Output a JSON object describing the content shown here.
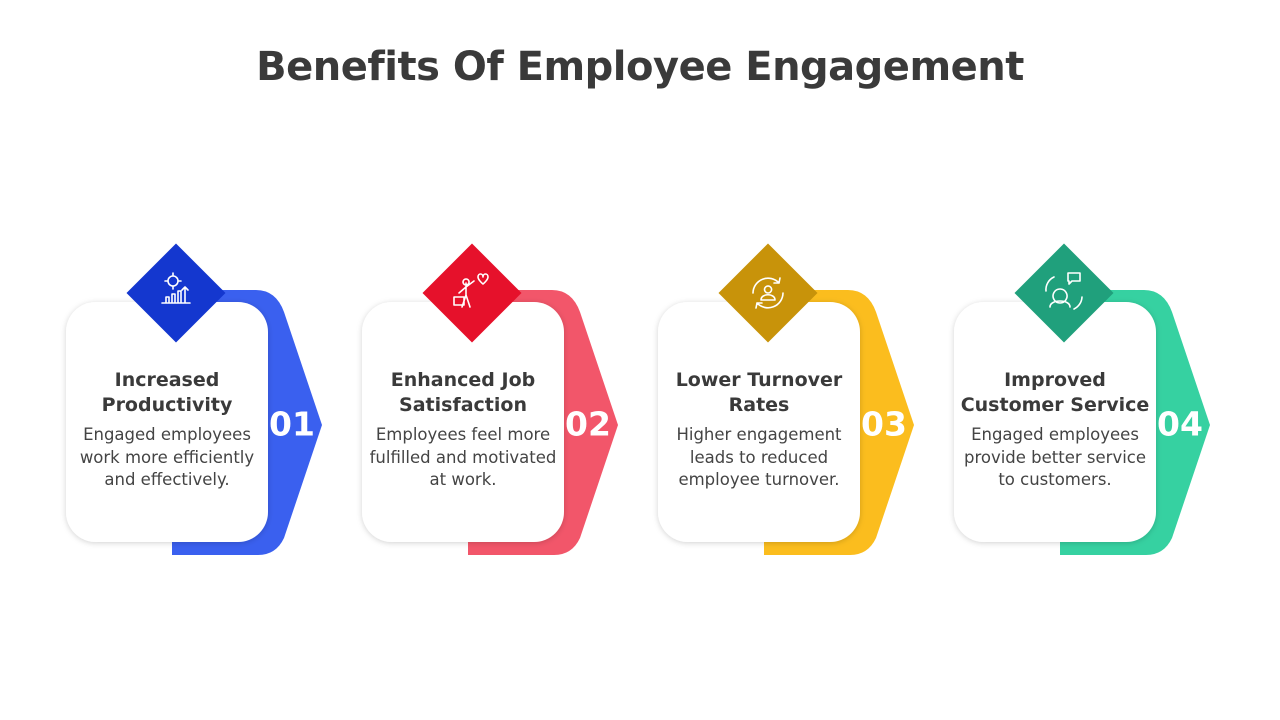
{
  "header": {
    "title": "Benefits Of Employee Engagement"
  },
  "items": [
    {
      "number": "01",
      "title": "Increased Productivity",
      "description": "Engaged employees work more efficiently and effectively."
    },
    {
      "number": "02",
      "title": "Enhanced Job Satisfaction",
      "description": "Employees feel more fulfilled and motivated at work."
    },
    {
      "number": "03",
      "title": "Lower Turnover Rates",
      "description": "Higher engagement leads to reduced employee turnover."
    },
    {
      "number": "04",
      "title": "Improved Customer Service",
      "description": "Engaged employees provide better service to customers."
    }
  ]
}
